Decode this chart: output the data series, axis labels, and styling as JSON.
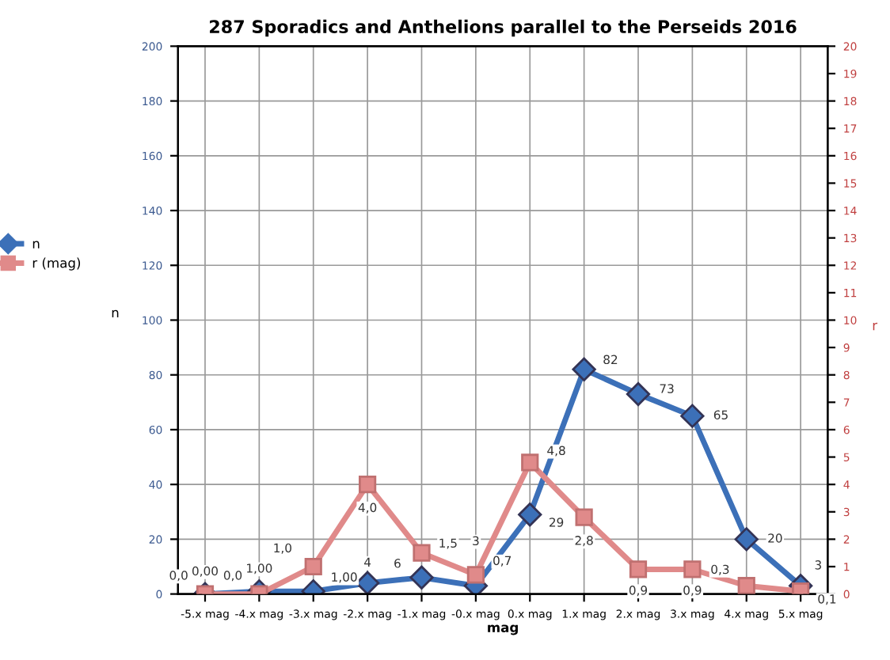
{
  "chart_data": {
    "type": "line",
    "title": "287 Sporadics and Anthelions parallel to the Perseids 2016",
    "xlabel": "mag",
    "ylabel": "n",
    "y2label": "r",
    "categories": [
      "-5.x mag",
      "-4.x mag",
      "-3.x mag",
      "-2.x mag",
      "-1.x mag",
      "-0.x mag",
      "0.x mag",
      "1.x mag",
      "2.x mag",
      "3.x mag",
      "4.x mag",
      "5.x mag"
    ],
    "series": [
      {
        "name": "n",
        "color": "#3c70b8",
        "marker": "diamond",
        "values": [
          0,
          1,
          1,
          4,
          6,
          3,
          29,
          82,
          73,
          65,
          20,
          3
        ],
        "value_labels": [
          "0,00",
          "1,00",
          "1,00",
          "4",
          "6",
          "3",
          "29",
          "82",
          "73",
          "65",
          "20",
          "3"
        ]
      },
      {
        "name": "r (mag)",
        "color": "#e08a8a",
        "marker": "square",
        "axis": "y2",
        "values": [
          0.0,
          0.0,
          1.0,
          4.0,
          1.5,
          0.7,
          4.8,
          2.8,
          0.9,
          0.9,
          0.3,
          0.1
        ],
        "value_labels": [
          "0,0",
          "0,0",
          "1,0",
          "4,0",
          "1,5",
          "0,7",
          "4,8",
          "2,8",
          "0,9",
          "0,9",
          "0,3",
          "0,1"
        ]
      }
    ],
    "ylim": [
      0,
      200
    ],
    "yticks": [
      0,
      20,
      40,
      60,
      80,
      100,
      120,
      140,
      160,
      180,
      200
    ],
    "y2lim": [
      0,
      20
    ],
    "y2ticks": [
      0,
      1,
      2,
      3,
      4,
      5,
      6,
      7,
      8,
      9,
      10,
      11,
      12,
      13,
      14,
      15,
      16,
      17,
      18,
      19,
      20
    ],
    "grid": true,
    "legend": "left",
    "line_style": "solid"
  }
}
